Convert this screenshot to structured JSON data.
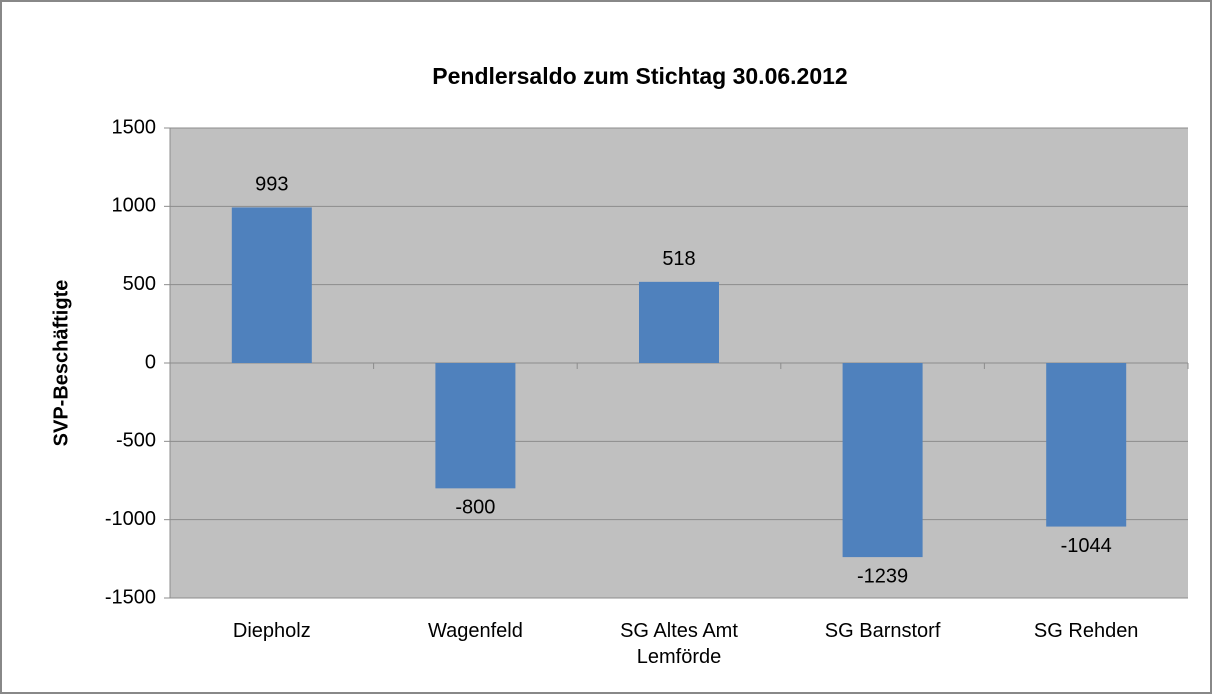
{
  "chart_data": {
    "type": "bar",
    "title": "Pendlersaldo zum Stichtag 30.06.2012",
    "y_label": "SVP-Beschäftigte",
    "categories": [
      "Diepholz",
      "Wagenfeld",
      "SG Altes Amt Lemförde",
      "SG Barnstorf",
      "SG Rehden"
    ],
    "values": [
      993,
      -800,
      518,
      -1239,
      -1044
    ],
    "color": "#4f81bd",
    "ylim": [
      -1500,
      1500
    ],
    "yticks": [
      -1500,
      -1000,
      -500,
      0,
      500,
      1000,
      1500
    ],
    "grid": true
  }
}
